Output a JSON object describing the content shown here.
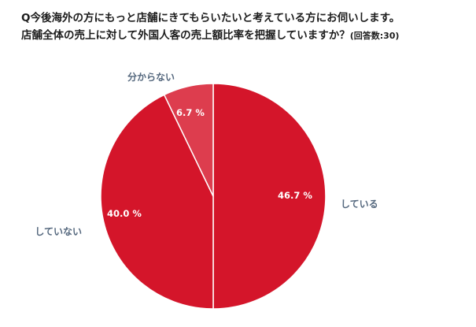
{
  "question": {
    "line1": "Q今後海外の方にもっと店舗にきてもらいたいと考えている方にお伺いします。",
    "line2": "店舗全体の売上に対して外国人客の売上額比率を把握していますか？",
    "note": "(回答数:30)"
  },
  "chart_data": {
    "type": "pie",
    "title": "",
    "start_angle_deg": 0,
    "direction": "clockwise",
    "slices": [
      {
        "label": "している",
        "value": 46.7,
        "value_label": "46.7 %",
        "color": "#d4152a"
      },
      {
        "label": "していない",
        "value": 40.0,
        "value_label": "40.0 %",
        "color": "#d4152a"
      },
      {
        "label": "分からない",
        "value": 6.7,
        "value_label": "6.7 %",
        "color": "#dd3d4e"
      }
    ],
    "outline_color": "#ffffff",
    "legend": "none"
  }
}
